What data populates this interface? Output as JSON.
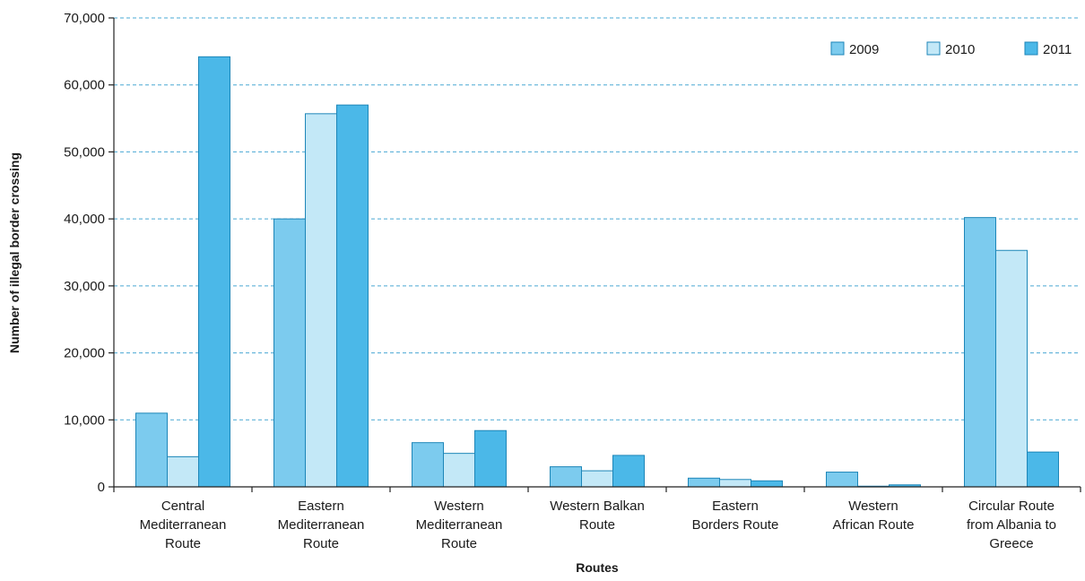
{
  "chart_data": {
    "type": "bar",
    "title": "",
    "xlabel": "Routes",
    "ylabel": "Number of illegal border crossing",
    "ylim": [
      0,
      70000
    ],
    "yticks": [
      0,
      10000,
      20000,
      30000,
      40000,
      50000,
      60000,
      70000
    ],
    "ytick_labels": [
      "0",
      "10,000",
      "20,000",
      "30,000",
      "40,000",
      "50,000",
      "60,000",
      "70,000"
    ],
    "grid": "horizontal dashed",
    "legend_position": "top-right",
    "categories": [
      [
        "Central",
        "Mediterranean",
        "Route"
      ],
      [
        "Eastern",
        "Mediterranean",
        "Route"
      ],
      [
        "Western",
        "Mediterranean",
        "Route"
      ],
      [
        "Western Balkan",
        "Route"
      ],
      [
        "Eastern",
        "Borders Route"
      ],
      [
        "Western",
        "African Route"
      ],
      [
        "Circular Route",
        "from Albania to",
        "Greece"
      ]
    ],
    "series": [
      {
        "name": "2009",
        "color": "#7ccbee",
        "values": [
          11000,
          40000,
          6600,
          3000,
          1300,
          2200,
          40200
        ]
      },
      {
        "name": "2010",
        "color": "#c3e8f7",
        "values": [
          4500,
          55700,
          5000,
          2400,
          1100,
          100,
          35300
        ]
      },
      {
        "name": "2011",
        "color": "#4bb8e8",
        "values": [
          64200,
          57000,
          8400,
          4700,
          900,
          300,
          5200
        ]
      }
    ],
    "colors": {
      "bar_stroke": "#1d86b8",
      "grid": "#4aa8d4",
      "axis": "#222222"
    }
  }
}
